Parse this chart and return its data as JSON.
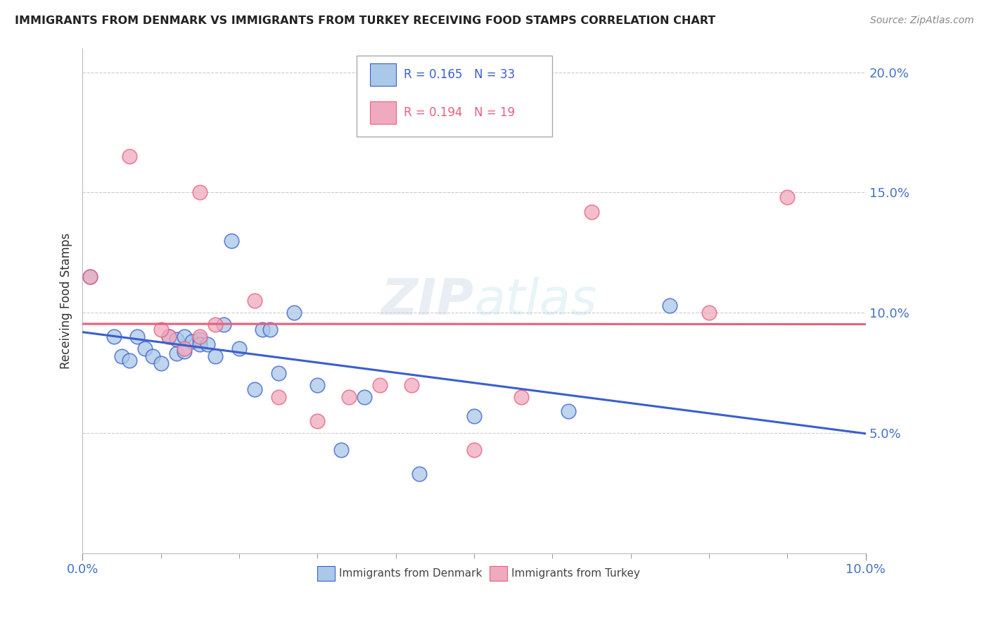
{
  "title": "IMMIGRANTS FROM DENMARK VS IMMIGRANTS FROM TURKEY RECEIVING FOOD STAMPS CORRELATION CHART",
  "source": "Source: ZipAtlas.com",
  "ylabel": "Receiving Food Stamps",
  "xlim": [
    0.0,
    0.1
  ],
  "ylim": [
    0.0,
    0.21
  ],
  "ytick_values": [
    0.05,
    0.1,
    0.15,
    0.2
  ],
  "ytick_labels": [
    "5.0%",
    "10.0%",
    "15.0%",
    "20.0%"
  ],
  "denmark_color": "#aac8e8",
  "turkey_color": "#f0aabf",
  "denmark_line_color": "#3a5fcd",
  "turkey_line_color": "#e8607a",
  "watermark": "ZIPatlas",
  "dk_R": "0.165",
  "dk_N": "33",
  "tr_R": "0.194",
  "tr_N": "19",
  "denmark_x": [
    0.001,
    0.004,
    0.005,
    0.006,
    0.007,
    0.008,
    0.009,
    0.01,
    0.011,
    0.012,
    0.012,
    0.013,
    0.013,
    0.014,
    0.015,
    0.015,
    0.016,
    0.017,
    0.018,
    0.019,
    0.02,
    0.022,
    0.023,
    0.024,
    0.025,
    0.027,
    0.03,
    0.033,
    0.036,
    0.043,
    0.05,
    0.062,
    0.075
  ],
  "denmark_y": [
    0.115,
    0.09,
    0.082,
    0.08,
    0.09,
    0.085,
    0.082,
    0.079,
    0.09,
    0.083,
    0.089,
    0.084,
    0.09,
    0.088,
    0.089,
    0.087,
    0.087,
    0.082,
    0.095,
    0.13,
    0.085,
    0.068,
    0.093,
    0.093,
    0.075,
    0.1,
    0.07,
    0.043,
    0.065,
    0.033,
    0.057,
    0.059,
    0.103
  ],
  "turkey_x": [
    0.001,
    0.006,
    0.011,
    0.013,
    0.015,
    0.015,
    0.017,
    0.022,
    0.025,
    0.03,
    0.034,
    0.038,
    0.042,
    0.05,
    0.056,
    0.065,
    0.08,
    0.09,
    0.01
  ],
  "turkey_y": [
    0.115,
    0.165,
    0.09,
    0.085,
    0.09,
    0.15,
    0.095,
    0.105,
    0.065,
    0.055,
    0.065,
    0.07,
    0.07,
    0.043,
    0.065,
    0.142,
    0.1,
    0.148,
    0.093
  ]
}
